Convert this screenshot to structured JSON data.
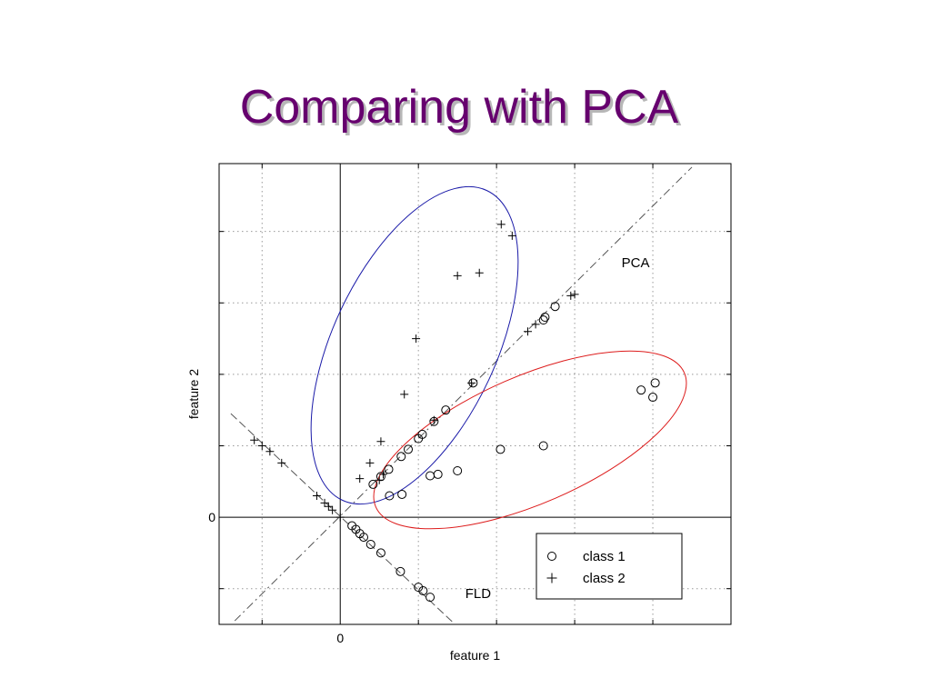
{
  "slide": {
    "title": "Comparing with PCA"
  },
  "chart_data": {
    "type": "scatter",
    "title": "",
    "xlabel": "feature 1",
    "ylabel": "feature 2",
    "xlim": [
      -1.55,
      5.0
    ],
    "ylim": [
      -1.5,
      4.95
    ],
    "xticks": [
      0
    ],
    "yticks": [
      0
    ],
    "grid": true,
    "legend": "bottom-right",
    "series": [
      {
        "name": "class 1",
        "marker": "o",
        "points": [
          [
            0.15,
            -0.12
          ],
          [
            0.2,
            -0.17
          ],
          [
            0.25,
            -0.23
          ],
          [
            0.3,
            -0.28
          ],
          [
            0.39,
            -0.38
          ],
          [
            0.52,
            -0.5
          ],
          [
            0.77,
            -0.76
          ],
          [
            1.0,
            -0.98
          ],
          [
            1.06,
            -1.03
          ],
          [
            1.15,
            -1.12
          ],
          [
            0.42,
            0.46
          ],
          [
            0.52,
            0.57
          ],
          [
            0.62,
            0.67
          ],
          [
            0.78,
            0.85
          ],
          [
            0.87,
            0.95
          ],
          [
            1.0,
            1.1
          ],
          [
            1.05,
            1.16
          ],
          [
            1.2,
            1.34
          ],
          [
            1.35,
            1.5
          ],
          [
            1.7,
            1.88
          ],
          [
            2.6,
            2.76
          ],
          [
            2.62,
            2.8
          ],
          [
            2.75,
            2.95
          ],
          [
            0.63,
            0.3
          ],
          [
            0.79,
            0.32
          ],
          [
            1.15,
            0.58
          ],
          [
            1.25,
            0.6
          ],
          [
            1.5,
            0.65
          ],
          [
            2.05,
            0.95
          ],
          [
            2.6,
            1.0
          ],
          [
            3.85,
            1.78
          ],
          [
            4.03,
            1.88
          ],
          [
            4.0,
            1.68
          ]
        ]
      },
      {
        "name": "class 2",
        "marker": "+",
        "points": [
          [
            -1.1,
            1.08
          ],
          [
            -1.0,
            1.0
          ],
          [
            -0.9,
            0.92
          ],
          [
            -0.75,
            0.76
          ],
          [
            -0.3,
            0.3
          ],
          [
            -0.2,
            0.2
          ],
          [
            -0.1,
            0.1
          ],
          [
            -0.15,
            0.15
          ],
          [
            0.0,
            0.0
          ],
          [
            0.5,
            0.52
          ],
          [
            0.55,
            0.6
          ],
          [
            1.2,
            1.36
          ],
          [
            1.68,
            1.88
          ],
          [
            2.4,
            2.6
          ],
          [
            2.5,
            2.7
          ],
          [
            2.95,
            3.1
          ],
          [
            3.0,
            3.12
          ],
          [
            0.25,
            0.54
          ],
          [
            0.38,
            0.76
          ],
          [
            0.52,
            1.06
          ],
          [
            0.82,
            1.72
          ],
          [
            0.97,
            2.5
          ],
          [
            1.5,
            3.38
          ],
          [
            1.78,
            3.42
          ],
          [
            2.06,
            4.1
          ],
          [
            2.2,
            3.94
          ]
        ]
      }
    ],
    "annotations": [
      {
        "text": "PCA",
        "x": 3.6,
        "y": 3.5
      },
      {
        "text": "FLD",
        "x": 1.6,
        "y": -1.13
      }
    ]
  }
}
